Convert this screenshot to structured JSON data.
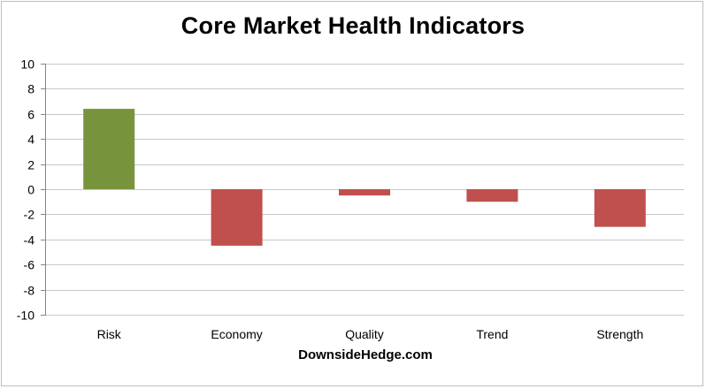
{
  "chart_data": {
    "type": "bar",
    "title": "Core Market Health Indicators",
    "source_label": "DownsideHedge.com",
    "categories": [
      "Risk",
      "Economy",
      "Quality",
      "Trend",
      "Strength"
    ],
    "values": [
      6.4,
      -4.5,
      -0.5,
      -1.0,
      -3.0
    ],
    "ylim": [
      -10,
      10
    ],
    "yticks": [
      10,
      8,
      6,
      4,
      2,
      0,
      -2,
      -4,
      -6,
      -8,
      -10
    ],
    "grid": true,
    "legend": "none",
    "colors": {
      "positive": "#77933c",
      "negative": "#c0504d",
      "grid": "#c8c8c8",
      "axis": "#868686"
    }
  }
}
